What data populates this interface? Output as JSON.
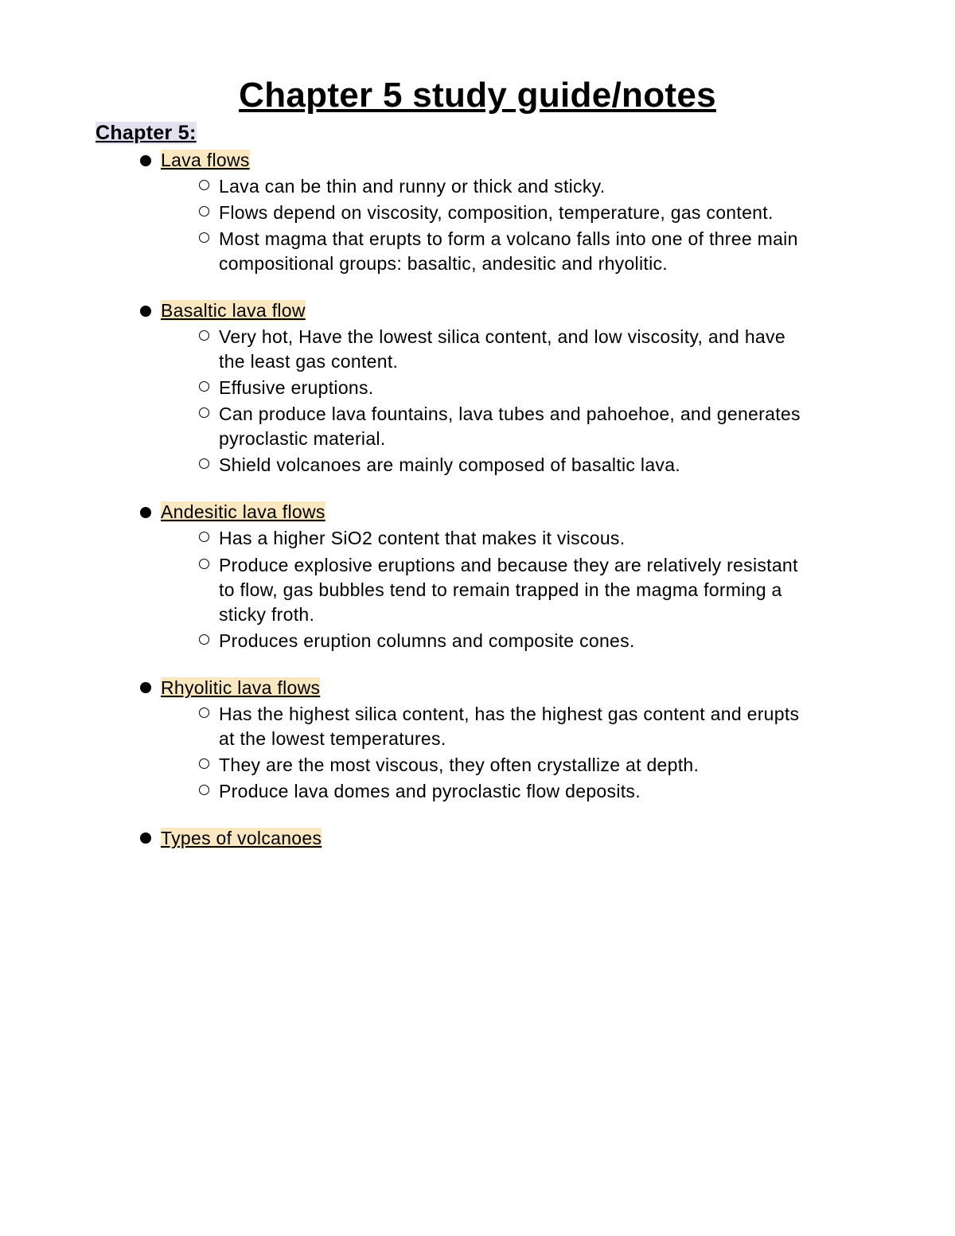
{
  "colors": {
    "page_bg": "#ffffff",
    "text": "#000000",
    "highlight_purple": "#e3e1f0",
    "highlight_yellow": "#fbe8c0",
    "bullet_fill": "#000000",
    "subbullet_border": "#000000"
  },
  "typography": {
    "family": "Verdana",
    "title_size_pt": 33,
    "chapter_label_size_pt": 19,
    "heading_size_pt": 17,
    "body_size_pt": 17
  },
  "title": "Chapter 5 study guide/notes",
  "chapter_label": "Chapter 5:",
  "sections": [
    {
      "heading": "Lava flows",
      "items": [
        "Lava can be thin and runny or thick and sticky.",
        "Flows depend on viscosity, composition, temperature, gas content.",
        "Most magma that erupts to form a volcano falls into one of three main compositional groups: basaltic, andesitic and rhyolitic."
      ]
    },
    {
      "heading": "Basaltic lava flow",
      "items": [
        "Very hot, Have the lowest silica content, and low viscosity, and have the least gas content.",
        "Effusive eruptions.",
        "Can produce lava fountains, lava tubes and pahoehoe, and generates pyroclastic material.",
        "Shield volcanoes are mainly composed of basaltic lava."
      ]
    },
    {
      "heading": "Andesitic lava flows",
      "items": [
        "Has a higher SiO2 content that makes it viscous.",
        "Produce explosive eruptions and because they are relatively resistant to flow, gas bubbles tend to remain trapped in the magma forming a sticky froth.",
        "Produces eruption columns and composite cones."
      ]
    },
    {
      "heading": "Rhyolitic lava flows",
      "items": [
        "Has the highest silica content, has the highest gas content and erupts at the lowest temperatures.",
        "They are the most viscous, they often crystallize at depth.",
        "Produce lava domes and pyroclastic flow deposits."
      ]
    },
    {
      "heading": "Types of volcanoes",
      "items": []
    }
  ]
}
